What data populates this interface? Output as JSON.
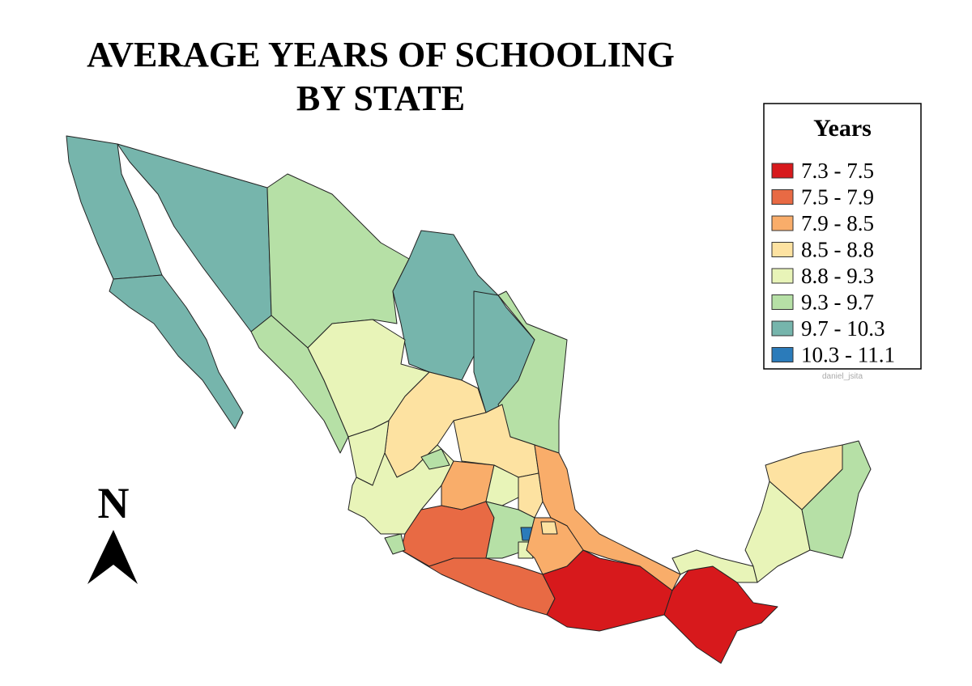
{
  "title": [
    "AVERAGE YEARS OF SCHOOLING",
    "BY STATE"
  ],
  "legend": {
    "title": "Years",
    "items": [
      {
        "label": "7.3 - 7.5",
        "color": "#d7191c"
      },
      {
        "label": "7.5 - 7.9",
        "color": "#e86a44"
      },
      {
        "label": "7.9 - 8.5",
        "color": "#f9ad6a"
      },
      {
        "label": "8.5 - 8.8",
        "color": "#fde2a1"
      },
      {
        "label": "8.8 - 9.3",
        "color": "#e8f4b8"
      },
      {
        "label": "9.3 - 9.7",
        "color": "#b6e0a6"
      },
      {
        "label": "9.7 - 10.3",
        "color": "#76b5ac"
      },
      {
        "label": "10.3 - 11.1",
        "color": "#2b7bba"
      }
    ]
  },
  "watermark": "daniel_jsita",
  "north_arrow": "N"
}
